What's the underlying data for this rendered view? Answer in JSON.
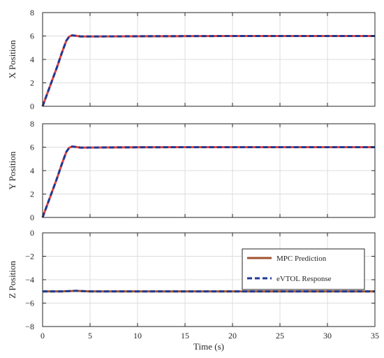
{
  "chart_data": {
    "type": "line",
    "xlabel": "Time (s)",
    "xlim": [
      0,
      35
    ],
    "xticks": [
      0,
      5,
      10,
      15,
      20,
      25,
      30,
      35
    ],
    "grid": true,
    "legend": {
      "placement": "top-right of bottom panel",
      "entries": [
        {
          "label": "MPC Prediction",
          "color": "#A0522D",
          "style": "solid"
        },
        {
          "label": "eVTOL Response",
          "color": "#1F3A93",
          "style": "dashed"
        }
      ]
    },
    "panels": [
      {
        "ylabel": "X Position",
        "ylim": [
          0,
          8
        ],
        "yticks": [
          0,
          2,
          4,
          6,
          8
        ],
        "series": [
          {
            "name": "MPC Prediction",
            "color": "#E8433A",
            "style": "solid",
            "x": [
              0,
              0.5,
              1,
              1.5,
              2,
              2.5,
              2.8,
              3.1,
              3.5,
              4,
              5,
              10,
              15,
              20,
              25,
              30,
              35
            ],
            "y": [
              0,
              1.1,
              2.2,
              3.3,
              4.5,
              5.6,
              5.95,
              6.05,
              6.02,
              5.96,
              5.96,
              5.98,
              5.99,
              6,
              6,
              6,
              6
            ]
          },
          {
            "name": "eVTOL Response",
            "color": "#1F3A93",
            "style": "dashed",
            "x": [
              0,
              0.5,
              1,
              1.5,
              2,
              2.5,
              2.8,
              3.1,
              3.5,
              4,
              5,
              10,
              15,
              20,
              25,
              30,
              35
            ],
            "y": [
              0,
              1.1,
              2.2,
              3.3,
              4.5,
              5.6,
              5.95,
              6.05,
              6.02,
              5.96,
              5.96,
              5.98,
              5.99,
              6,
              6,
              6,
              6
            ]
          }
        ]
      },
      {
        "ylabel": "Y Position",
        "ylim": [
          0,
          8
        ],
        "yticks": [
          0,
          2,
          4,
          6,
          8
        ],
        "series": [
          {
            "name": "MPC Prediction",
            "color": "#E8433A",
            "style": "solid",
            "x": [
              0,
              0.5,
              1,
              1.5,
              2,
              2.5,
              2.8,
              3.1,
              3.5,
              4,
              5,
              10,
              15,
              20,
              25,
              30,
              35
            ],
            "y": [
              0,
              1.1,
              2.2,
              3.3,
              4.5,
              5.6,
              5.95,
              6.05,
              6.02,
              5.96,
              5.97,
              5.99,
              6,
              6,
              6,
              6,
              6
            ]
          },
          {
            "name": "eVTOL Response",
            "color": "#1F3A93",
            "style": "dashed",
            "x": [
              0,
              0.5,
              1,
              1.5,
              2,
              2.5,
              2.8,
              3.1,
              3.5,
              4,
              5,
              10,
              15,
              20,
              25,
              30,
              35
            ],
            "y": [
              0,
              1.1,
              2.2,
              3.3,
              4.5,
              5.6,
              5.95,
              6.05,
              6.02,
              5.96,
              5.97,
              5.99,
              6,
              6,
              6,
              6,
              6
            ]
          }
        ]
      },
      {
        "ylabel": "Z Position",
        "ylim": [
          -8,
          0
        ],
        "yticks": [
          -8,
          -6,
          -4,
          -2,
          0
        ],
        "yticklabels": [
          "−8",
          "−6",
          "−4",
          "−2",
          "0"
        ],
        "series": [
          {
            "name": "MPC Prediction",
            "color": "#A0522D",
            "style": "solid",
            "x": [
              0,
              2,
              3,
              3.5,
              4,
              5,
              10,
              20,
              35
            ],
            "y": [
              -5,
              -5,
              -4.97,
              -4.95,
              -4.97,
              -5,
              -5,
              -5,
              -5
            ]
          },
          {
            "name": "eVTOL Response",
            "color": "#1F3A93",
            "style": "dashed",
            "x": [
              0,
              2,
              3,
              3.5,
              4,
              5,
              10,
              20,
              35
            ],
            "y": [
              -5,
              -5,
              -4.97,
              -4.95,
              -4.97,
              -5,
              -5,
              -5,
              -5
            ]
          }
        ]
      }
    ]
  }
}
